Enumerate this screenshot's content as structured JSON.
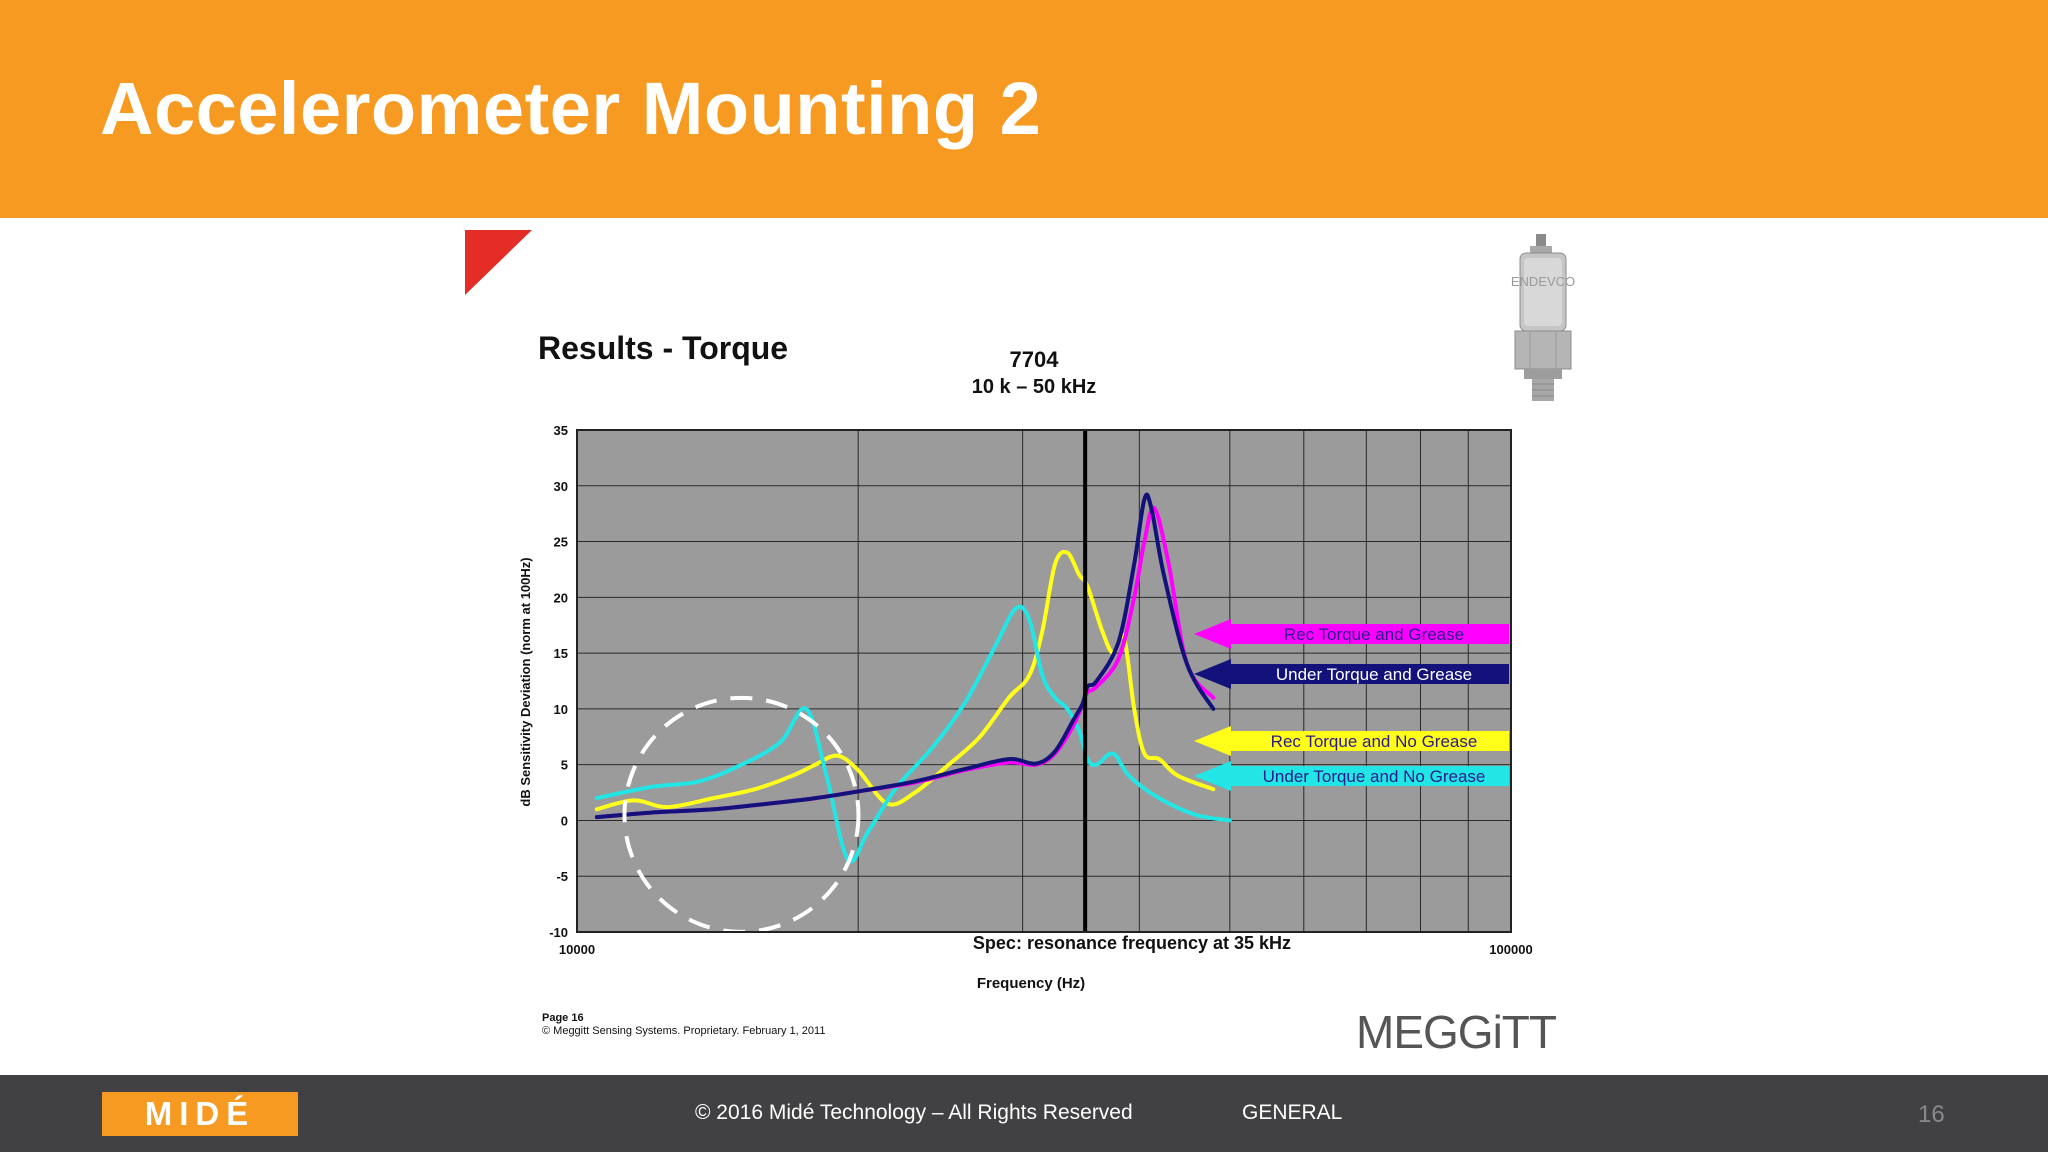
{
  "slide": {
    "title": "Accelerometer Mounting 2"
  },
  "figure": {
    "heading": "Results - Torque",
    "model": "7704",
    "band": "10 k – 50 kHz",
    "spec_note": "Spec: resonance frequency at 35 kHz",
    "page_label": "Page 16",
    "copyright": "© Meggitt Sensing Systems. Proprietary. February 1, 2011",
    "brand": "MEGGiTT",
    "sensor_image_text": "ENDEVCO"
  },
  "chart_data": {
    "type": "line",
    "x_scale": "log",
    "xlim": [
      10000,
      100000
    ],
    "ylim": [
      -10,
      35
    ],
    "xlabel": "Frequency (Hz)",
    "ylabel": "dB Sensitivity Deviation (norm at 100Hz)",
    "x_tick_labels": [
      "10000",
      "100000"
    ],
    "y_ticks": [
      -10,
      -5,
      0,
      5,
      10,
      15,
      20,
      25,
      30,
      35
    ],
    "grid": true,
    "plot_background": "#9b9b9b",
    "marker_line_x": 35000,
    "highlight_circle_center": [
      15000,
      0.5
    ],
    "series": [
      {
        "name": "Rec Torque and Grease",
        "color": "#ff00ff",
        "x": [
          10500,
          12000,
          14000,
          16000,
          18000,
          20000,
          23000,
          26000,
          29000,
          31000,
          32500,
          34000,
          34800,
          35200,
          36000,
          38000,
          39500,
          40500,
          41500,
          43000,
          45000,
          48000
        ],
        "y": [
          0.3,
          0.7,
          1.0,
          1.5,
          2.0,
          2.6,
          3.4,
          4.5,
          5.2,
          5.0,
          6.0,
          8.5,
          10.5,
          11.5,
          12.0,
          14.5,
          20.0,
          25.0,
          28.0,
          23.0,
          14.0,
          11.0
        ]
      },
      {
        "name": "Under Torque and Grease",
        "color": "#12127a",
        "x": [
          10500,
          12000,
          14000,
          16000,
          18000,
          20000,
          23000,
          26000,
          29000,
          31000,
          32500,
          34000,
          34800,
          35200,
          36000,
          38000,
          39500,
          40500,
          41200,
          42500,
          45000,
          48000
        ],
        "y": [
          0.3,
          0.7,
          1.0,
          1.5,
          2.0,
          2.6,
          3.5,
          4.6,
          5.5,
          5.1,
          6.2,
          9.0,
          10.5,
          12.0,
          12.5,
          16.0,
          23.0,
          28.8,
          28.0,
          22.0,
          14.0,
          10.0
        ]
      },
      {
        "name": "Rec Torque and No Grease",
        "color": "#ffff1a",
        "x": [
          10500,
          11500,
          12500,
          14000,
          15500,
          17000,
          18000,
          19000,
          20000,
          21500,
          23000,
          25000,
          27000,
          29000,
          30500,
          31500,
          32500,
          33500,
          34500,
          35200,
          36500,
          37500,
          38500,
          39500,
          40500,
          42000,
          44000,
          48000
        ],
        "y": [
          1.0,
          1.8,
          1.2,
          2.0,
          2.8,
          4.0,
          5.0,
          5.8,
          4.5,
          1.5,
          2.5,
          5.0,
          7.5,
          11.0,
          13.0,
          17.0,
          23.0,
          24.0,
          22.0,
          21.0,
          17.0,
          15.0,
          16.5,
          10.0,
          6.0,
          5.5,
          4.0,
          2.8
        ]
      },
      {
        "name": "Under Torque and No Grease",
        "color": "#22e6e6",
        "x": [
          10500,
          12000,
          13500,
          15000,
          16500,
          17600,
          18500,
          19500,
          20500,
          22000,
          24000,
          26000,
          28000,
          29500,
          30500,
          31500,
          32500,
          33500,
          34500,
          35200,
          36000,
          37500,
          39000,
          42000,
          46000,
          50000
        ],
        "y": [
          2.0,
          3.0,
          3.5,
          5.0,
          7.0,
          10.0,
          4.0,
          -3.5,
          -1.0,
          3.0,
          6.5,
          10.5,
          15.5,
          19.0,
          18.0,
          13.0,
          11.0,
          10.0,
          8.0,
          5.5,
          5.0,
          6.0,
          4.0,
          2.0,
          0.5,
          0.0
        ]
      }
    ]
  },
  "footer": {
    "logo_text": "MIDÉ",
    "copyright": "© 2016 Midé Technology – All Rights Reserved",
    "classification": "GENERAL",
    "page_number": "16"
  }
}
